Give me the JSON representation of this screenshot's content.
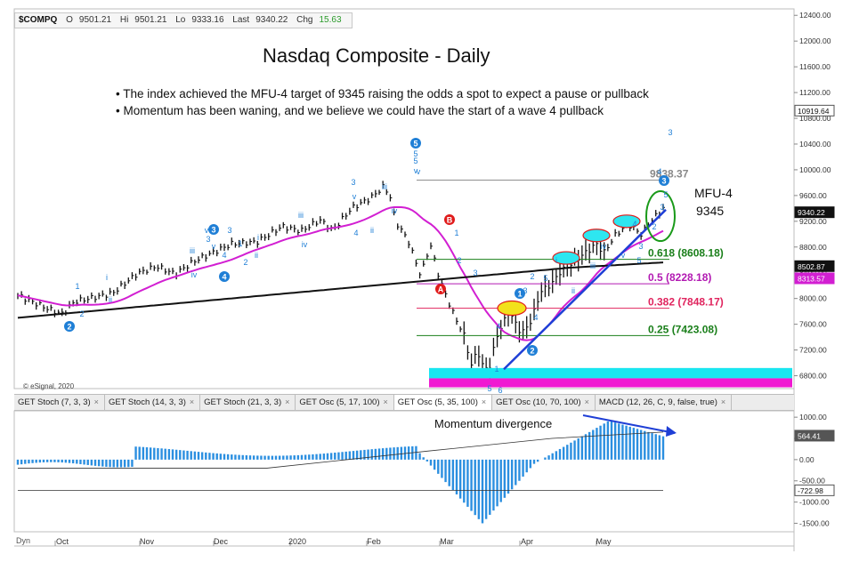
{
  "header": {
    "symbol": "$COMPQ",
    "open_label": "O",
    "open": "9501.21",
    "high_label": "Hi",
    "high": "9501.21",
    "low_label": "Lo",
    "low": "9333.16",
    "last_label": "Last",
    "last": "9340.22",
    "chg_label": "Chg",
    "chg": "15.63"
  },
  "title": "Nasdaq Composite - Daily",
  "bullets": [
    "• The index achieved the MFU-4 target of 9345 raising the odds a spot to expect a pause or pullback",
    "• Momentum has been waning, and we believe we could have the start of a wave 4 pullback"
  ],
  "copyright": "© eSignal, 2020",
  "indicator_tabs": [
    {
      "label": "GET Stoch (7, 3, 3)",
      "active": false
    },
    {
      "label": "GET Stoch (14, 3, 3)",
      "active": false
    },
    {
      "label": "GET Stoch (21, 3, 3)",
      "active": false
    },
    {
      "label": "GET Osc (5, 17, 100)",
      "active": false
    },
    {
      "label": "GET Osc (5, 35, 100)",
      "active": true
    },
    {
      "label": "GET Osc (10, 70, 100)",
      "active": false
    },
    {
      "label": "MACD (12, 26, C, 9, false, true)",
      "active": false
    }
  ],
  "dyn_label": "Dyn",
  "colors": {
    "candle": "#111111",
    "ma_short": "#d21fd2",
    "ma_long": "#111111",
    "trend": "#1f3fd6",
    "fib_618": "#1a7f1a",
    "fib_5": "#b219b2",
    "fib_382": "#e0245e",
    "fib_25": "#1a7f1a",
    "osc_bar": "#2b8fe0",
    "support_cyan": "#19e6f0",
    "support_magenta": "#f019d2",
    "highlight": "#2ee6f0"
  },
  "chart_data": [
    {
      "type": "candlestick",
      "title": "Nasdaq Composite - Daily",
      "x_months": [
        "Oct",
        "Nov",
        "Dec",
        "2020",
        "Feb",
        "Mar",
        "Apr",
        "May"
      ],
      "ylim": [
        6600,
        12500
      ],
      "y_ticks": [
        "12400.00",
        "12000.00",
        "11600.00",
        "11200.00",
        "10800.00",
        "10400.00",
        "10000.00",
        "9600.00",
        "9200.00",
        "8800.00",
        "8400.00",
        "8000.00",
        "7600.00",
        "7200.00",
        "6800.00"
      ],
      "price_labels": [
        {
          "text": "10919.64",
          "value": 10919.64,
          "color": "#ffffff",
          "border": "#555555",
          "fg": "#111111"
        },
        {
          "text": "9340.22",
          "value": 9340.22,
          "color": "#111111",
          "border": "#111111",
          "fg": "#ffffff"
        },
        {
          "text": "8502.87",
          "value": 8502.87,
          "color": "#111111",
          "border": "#111111",
          "fg": "#ffffff"
        },
        {
          "text": "8313.57",
          "value": 8313.57,
          "color": "#d21fd2",
          "border": "#d21fd2",
          "fg": "#ffffff"
        }
      ],
      "fib_levels": [
        {
          "label": "9838.37",
          "value": 9838.37,
          "color": "#888888"
        },
        {
          "label": "0.618 (8608.18)",
          "value": 8608.18,
          "color": "#1a7f1a"
        },
        {
          "label": "0.5 (8228.18)",
          "value": 8228.18,
          "color": "#b219b2"
        },
        {
          "label": "0.382 (7848.17)",
          "value": 7848.17,
          "color": "#e0245e"
        },
        {
          "label": "0.25 (7423.08)",
          "value": 7423.08,
          "color": "#1a7f1a"
        }
      ],
      "annotations": {
        "mfu": "MFU-4",
        "mfu_value": "9345"
      },
      "wave_labels": [
        "1",
        "2",
        "i",
        "ii",
        "iii",
        "iv",
        "v",
        "3",
        "5",
        "v",
        "3",
        "4",
        "1",
        "2",
        "i",
        "ii",
        "iii",
        "iv",
        "3",
        "v",
        "4",
        "ii",
        "iii",
        "iv",
        "v",
        "5",
        "5",
        "v",
        "A",
        "B",
        "1",
        "2",
        "3",
        "4",
        "1",
        "2",
        "3",
        "4",
        "5",
        "i",
        "ii",
        "iii",
        "iv",
        "v",
        "3",
        "4",
        "5",
        "2",
        "3",
        "4",
        "5",
        "3",
        "5",
        "6"
      ],
      "wave_circles": [
        "2",
        "3",
        "4",
        "5",
        "A",
        "B",
        "1",
        "2",
        "3"
      ]
    },
    {
      "type": "bar",
      "title": "",
      "ylim": [
        -1700,
        1150
      ],
      "y_ticks": [
        "1000.00",
        "500.00",
        "0.00",
        "-500.00",
        "-1000.00",
        "-1500.00"
      ],
      "price_labels": [
        {
          "text": "564.41",
          "value": 564.41
        },
        {
          "text": "-722.98",
          "value": -722.98
        }
      ],
      "annotation": "Momentum divergence"
    }
  ]
}
